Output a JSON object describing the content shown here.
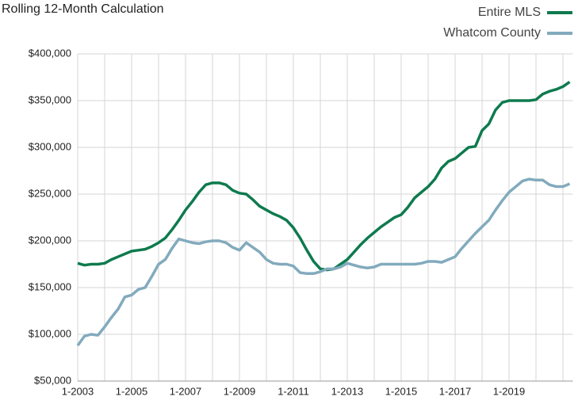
{
  "chart_data": {
    "type": "line",
    "title": "Rolling 12-Month Calculation",
    "categories": [
      "1-2003",
      null,
      null,
      null,
      null,
      null,
      null,
      null,
      "1-2005",
      null,
      null,
      null,
      null,
      null,
      null,
      null,
      "1-2007",
      null,
      null,
      null,
      null,
      null,
      null,
      null,
      "1-2009",
      null,
      null,
      null,
      null,
      null,
      null,
      null,
      "1-2011",
      null,
      null,
      null,
      null,
      null,
      null,
      null,
      "1-2013",
      null,
      null,
      null,
      null,
      null,
      null,
      null,
      "1-2015",
      null,
      null,
      null,
      null,
      null,
      null,
      null,
      "1-2017",
      null,
      null,
      null,
      null,
      null,
      null,
      null,
      "1-2019",
      null,
      null,
      null,
      null,
      null,
      null,
      null,
      null,
      null
    ],
    "series": [
      {
        "name": "Entire MLS",
        "color": "#0e7a4e",
        "values": [
          176000,
          174000,
          175000,
          175000,
          176000,
          180000,
          183000,
          186000,
          189000,
          190000,
          191000,
          194000,
          198000,
          203000,
          212000,
          222000,
          233000,
          242000,
          252000,
          260000,
          262000,
          262000,
          260000,
          254000,
          251000,
          250000,
          244000,
          237000,
          233000,
          229000,
          226000,
          222000,
          214000,
          203000,
          190000,
          178000,
          170000,
          169000,
          170000,
          175000,
          180000,
          188000,
          196000,
          203000,
          209000,
          215000,
          220000,
          225000,
          228000,
          236000,
          246000,
          252000,
          258000,
          266000,
          278000,
          285000,
          288000,
          294000,
          300000,
          301000,
          318000,
          325000,
          340000,
          348000,
          350000,
          350000,
          350000,
          350000,
          351000,
          357000,
          360000,
          362000,
          365000,
          370000
        ]
      },
      {
        "name": "Whatcom County",
        "color": "#82aabd",
        "values": [
          88000,
          98000,
          100000,
          99000,
          108000,
          118000,
          127000,
          140000,
          142000,
          148000,
          150000,
          162000,
          175000,
          180000,
          192000,
          202000,
          200000,
          198000,
          197000,
          199000,
          200000,
          200000,
          198000,
          193000,
          190000,
          198000,
          193000,
          188000,
          180000,
          176000,
          175000,
          175000,
          173000,
          166000,
          165000,
          165000,
          167000,
          170000,
          170000,
          172000,
          176000,
          174000,
          172000,
          171000,
          172000,
          175000,
          175000,
          175000,
          175000,
          175000,
          175000,
          176000,
          178000,
          178000,
          177000,
          180000,
          183000,
          192000,
          200000,
          208000,
          215000,
          222000,
          233000,
          243000,
          252000,
          258000,
          264000,
          266000,
          265000,
          265000,
          260000,
          258000,
          258000,
          261000
        ]
      }
    ],
    "ylim": [
      50000,
      400000
    ],
    "yticks": [
      {
        "value": 50000,
        "label": "$50,000"
      },
      {
        "value": 100000,
        "label": "$100,000"
      },
      {
        "value": 150000,
        "label": "$150,000"
      },
      {
        "value": 200000,
        "label": "$200,000"
      },
      {
        "value": 250000,
        "label": "$250,000"
      },
      {
        "value": 300000,
        "label": "$300,000"
      },
      {
        "value": 350000,
        "label": "$350,000"
      },
      {
        "value": 400000,
        "label": "$400,000"
      }
    ],
    "grid": true,
    "legend": "upper right"
  }
}
